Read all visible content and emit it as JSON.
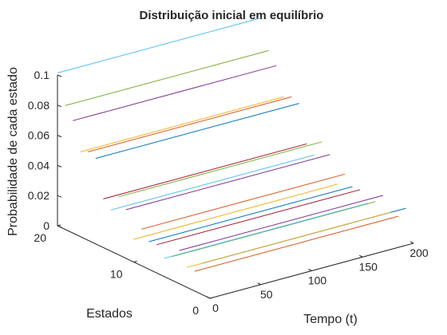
{
  "chart_data": {
    "type": "line",
    "title": "Distribuição inicial em equilíbrio",
    "xlabel": "Tempo (t)",
    "ylabel": "Estados",
    "zlabel": "Probabilidade de cada estado",
    "x_ticks": [
      "0",
      "50",
      "100",
      "150",
      "200"
    ],
    "y_ticks": [
      "0",
      "10",
      "20"
    ],
    "z_ticks": [
      "0",
      "0.02",
      "0.04",
      "0.06",
      "0.08",
      "0.1"
    ],
    "xlim": [
      0,
      200
    ],
    "ylim": [
      0,
      20
    ],
    "zlim": [
      0,
      0.1
    ],
    "grid": false,
    "colors": [
      "#0072BD",
      "#D95319",
      "#EDB120",
      "#7E2F8E",
      "#77AC30",
      "#4DBEEE",
      "#A2142F"
    ],
    "series": [
      {
        "state": 1,
        "values": [
          0.0208,
          0.0208
        ]
      },
      {
        "state": 2,
        "values": [
          0.0131,
          0.0131
        ]
      },
      {
        "state": 3,
        "values": [
          0.0133,
          0.0133
        ]
      },
      {
        "state": 4,
        "values": [
          0.0221,
          0.0221
        ]
      },
      {
        "state": 5,
        "values": [
          0.0156,
          0.0156
        ]
      },
      {
        "state": 6,
        "values": [
          0.0121,
          0.0121
        ]
      },
      {
        "state": 7,
        "values": [
          0.0187,
          0.0187
        ]
      },
      {
        "state": 8,
        "values": [
          0.0183,
          0.0183
        ]
      },
      {
        "state": 9,
        "values": [
          0.0242,
          0.0242
        ]
      },
      {
        "state": 10,
        "values": [
          0.0151,
          0.0151
        ]
      },
      {
        "state": 11,
        "values": [
          0.0323,
          0.0323
        ]
      },
      {
        "state": 12,
        "values": [
          0.0384,
          0.0384
        ]
      },
      {
        "state": 13,
        "values": [
          0.0273,
          0.0273
        ]
      },
      {
        "state": 14,
        "values": [
          0.0322,
          0.0322
        ]
      },
      {
        "state": 15,
        "values": [
          0.0567,
          0.0567
        ]
      },
      {
        "state": 16,
        "values": [
          0.0586,
          0.0586
        ]
      },
      {
        "state": 17,
        "values": [
          0.0562,
          0.0562
        ]
      },
      {
        "state": 18,
        "values": [
          0.0745,
          0.0745
        ]
      },
      {
        "state": 19,
        "values": [
          0.0821,
          0.0821
        ]
      },
      {
        "state": 20,
        "values": [
          0.1013,
          0.1013
        ]
      }
    ]
  }
}
